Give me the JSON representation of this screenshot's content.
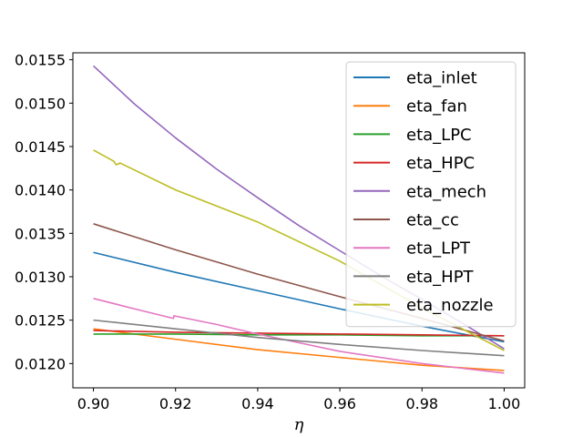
{
  "chart_data": {
    "type": "line",
    "title": "",
    "xlabel": "η",
    "ylabel": "",
    "xlim": [
      0.895,
      1.005
    ],
    "ylim": [
      0.01172,
      0.01558
    ],
    "xticks": [
      {
        "value": 0.9,
        "label": "0.90"
      },
      {
        "value": 0.92,
        "label": "0.92"
      },
      {
        "value": 0.94,
        "label": "0.94"
      },
      {
        "value": 0.96,
        "label": "0.96"
      },
      {
        "value": 0.98,
        "label": "0.98"
      },
      {
        "value": 1.0,
        "label": "1.00"
      }
    ],
    "yticks": [
      {
        "value": 0.012,
        "label": "0.0120"
      },
      {
        "value": 0.0125,
        "label": "0.0125"
      },
      {
        "value": 0.013,
        "label": "0.0130"
      },
      {
        "value": 0.0135,
        "label": "0.0135"
      },
      {
        "value": 0.014,
        "label": "0.0140"
      },
      {
        "value": 0.0145,
        "label": "0.0145"
      },
      {
        "value": 0.015,
        "label": "0.0150"
      },
      {
        "value": 0.0155,
        "label": "0.0155"
      }
    ],
    "grid": false,
    "legend_position": "top-right",
    "series": [
      {
        "name": "eta_inlet",
        "color": "#1f77b4",
        "points": [
          [
            0.9,
            0.01328
          ],
          [
            0.92,
            0.01305
          ],
          [
            0.94,
            0.01284
          ],
          [
            0.96,
            0.01263
          ],
          [
            0.98,
            0.01243
          ],
          [
            1.0,
            0.01225
          ]
        ]
      },
      {
        "name": "eta_fan",
        "color": "#ff7f0e",
        "points": [
          [
            0.9,
            0.0124
          ],
          [
            0.92,
            0.01228
          ],
          [
            0.94,
            0.01216
          ],
          [
            0.96,
            0.01207
          ],
          [
            0.98,
            0.01198
          ],
          [
            1.0,
            0.01192
          ]
        ]
      },
      {
        "name": "eta_LPC",
        "color": "#2ca02c",
        "points": [
          [
            0.9,
            0.01234
          ],
          [
            0.92,
            0.01234
          ],
          [
            0.94,
            0.01233
          ],
          [
            0.96,
            0.01233
          ],
          [
            0.98,
            0.01232
          ],
          [
            1.0,
            0.01232
          ]
        ]
      },
      {
        "name": "eta_HPC",
        "color": "#d62728",
        "points": [
          [
            0.9,
            0.01238
          ],
          [
            0.92,
            0.01236
          ],
          [
            0.94,
            0.01235
          ],
          [
            0.96,
            0.01234
          ],
          [
            0.98,
            0.01233
          ],
          [
            1.0,
            0.01232
          ]
        ]
      },
      {
        "name": "eta_mech",
        "color": "#9467bd",
        "points": [
          [
            0.9,
            0.01543
          ],
          [
            0.91,
            0.01499
          ],
          [
            0.92,
            0.0146
          ],
          [
            0.93,
            0.01424
          ],
          [
            0.94,
            0.01391
          ],
          [
            0.95,
            0.01359
          ],
          [
            0.96,
            0.0133
          ],
          [
            0.97,
            0.01301
          ],
          [
            0.98,
            0.01274
          ],
          [
            0.99,
            0.01246
          ],
          [
            1.0,
            0.01217
          ]
        ]
      },
      {
        "name": "eta_cc",
        "color": "#8c564b",
        "points": [
          [
            0.9,
            0.01361
          ],
          [
            0.92,
            0.01331
          ],
          [
            0.94,
            0.01303
          ],
          [
            0.96,
            0.01277
          ],
          [
            0.98,
            0.01252
          ],
          [
            1.0,
            0.01226
          ]
        ]
      },
      {
        "name": "eta_LPT",
        "color": "#e377c2",
        "points": [
          [
            0.9,
            0.01275
          ],
          [
            0.91,
            0.01263
          ],
          [
            0.9195,
            0.01252
          ],
          [
            0.9196,
            0.01255
          ],
          [
            0.93,
            0.01245
          ],
          [
            0.94,
            0.01234
          ],
          [
            0.96,
            0.01214
          ],
          [
            0.98,
            0.012
          ],
          [
            1.0,
            0.01189
          ]
        ]
      },
      {
        "name": "eta_HPT",
        "color": "#7f7f7f",
        "points": [
          [
            0.9,
            0.0125
          ],
          [
            0.92,
            0.0124
          ],
          [
            0.94,
            0.0123
          ],
          [
            0.96,
            0.01222
          ],
          [
            0.98,
            0.01215
          ],
          [
            1.0,
            0.01209
          ]
        ]
      },
      {
        "name": "eta_nozzle",
        "color": "#bcbd22",
        "points": [
          [
            0.9,
            0.01446
          ],
          [
            0.905,
            0.01433
          ],
          [
            0.9055,
            0.01429
          ],
          [
            0.9065,
            0.01431
          ],
          [
            0.92,
            0.014
          ],
          [
            0.94,
            0.01363
          ],
          [
            0.96,
            0.01318
          ],
          [
            0.98,
            0.01264
          ],
          [
            1.0,
            0.01215
          ]
        ]
      }
    ]
  }
}
